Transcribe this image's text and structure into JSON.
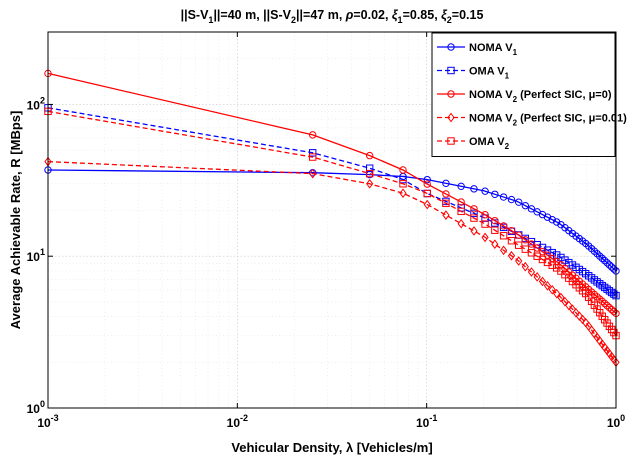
{
  "chart_data": {
    "type": "line",
    "title_parts": [
      "||S-V",
      "1",
      "||=40 m, ||S-V",
      "2",
      "||=47 m, ",
      "ρ",
      "=0.02, ",
      "ξ",
      "1",
      "=0.85, ",
      "ξ",
      "2",
      "=0.15"
    ],
    "xlabel": "Vehicular Density, λ [Vehicles/m]",
    "ylabel": "Average Achievable Rate, R [MBps]",
    "xscale": "log",
    "yscale": "log",
    "xlim": [
      0.001,
      1
    ],
    "ylim": [
      1,
      300
    ],
    "x_ticks": [
      {
        "value": 0.001,
        "base": "10",
        "exp": "-3"
      },
      {
        "value": 0.01,
        "base": "10",
        "exp": "-2"
      },
      {
        "value": 0.1,
        "base": "10",
        "exp": "-1"
      },
      {
        "value": 1,
        "base": "10",
        "exp": "0"
      }
    ],
    "y_ticks": [
      {
        "value": 1,
        "base": "10",
        "exp": "0"
      },
      {
        "value": 10,
        "base": "10",
        "exp": "1"
      },
      {
        "value": 100,
        "base": "10",
        "exp": "2"
      }
    ],
    "grid": true,
    "legend_position": "top-right",
    "series": [
      {
        "legend_parts": [
          "NOMA V",
          "1",
          ""
        ],
        "color": "#0000ff",
        "dash": "solid",
        "marker": "circle",
        "x": [
          0.001,
          0.025,
          0.05,
          0.075,
          0.1,
          0.2,
          0.3,
          0.5,
          0.7,
          1.0
        ],
        "y": [
          37,
          35.5,
          34.5,
          33.5,
          32,
          27,
          23,
          16.5,
          12,
          8
        ]
      },
      {
        "legend_parts": [
          "OMA V",
          "1",
          ""
        ],
        "color": "#0000ff",
        "dash": "dashed",
        "marker": "square",
        "x": [
          0.001,
          0.025,
          0.05,
          0.075,
          0.1,
          0.2,
          0.3,
          0.5,
          0.7,
          1.0
        ],
        "y": [
          95,
          48,
          38,
          32,
          26,
          18,
          14,
          10,
          7.6,
          5.5
        ]
      },
      {
        "legend_parts": [
          "NOMA V",
          "2",
          " (Perfect SIC, μ=0)"
        ],
        "color": "#ff0000",
        "dash": "solid",
        "marker": "circle",
        "x": [
          0.001,
          0.025,
          0.05,
          0.075,
          0.1,
          0.2,
          0.3,
          0.5,
          0.7,
          1.0
        ],
        "y": [
          160,
          63,
          46,
          37,
          30,
          19,
          14,
          9,
          6.2,
          4.2
        ]
      },
      {
        "legend_parts": [
          "NOMA V",
          "2",
          " (Perfect SIC, μ=0.01)"
        ],
        "color": "#ff0000",
        "dash": "dashed",
        "marker": "diamond",
        "x": [
          0.001,
          0.025,
          0.05,
          0.075,
          0.1,
          0.2,
          0.3,
          0.5,
          0.7,
          1.0
        ],
        "y": [
          42,
          35,
          30,
          26,
          22,
          13.5,
          9.5,
          5.5,
          3.6,
          2.0
        ]
      },
      {
        "legend_parts": [
          "OMA V",
          "2",
          ""
        ],
        "color": "#ff0000",
        "dash": "dashed",
        "marker": "square",
        "x": [
          0.001,
          0.025,
          0.05,
          0.075,
          0.1,
          0.2,
          0.3,
          0.5,
          0.7,
          1.0
        ],
        "y": [
          90,
          45,
          35,
          30,
          26,
          16.5,
          12,
          8.2,
          5.6,
          3.0
        ]
      }
    ]
  }
}
